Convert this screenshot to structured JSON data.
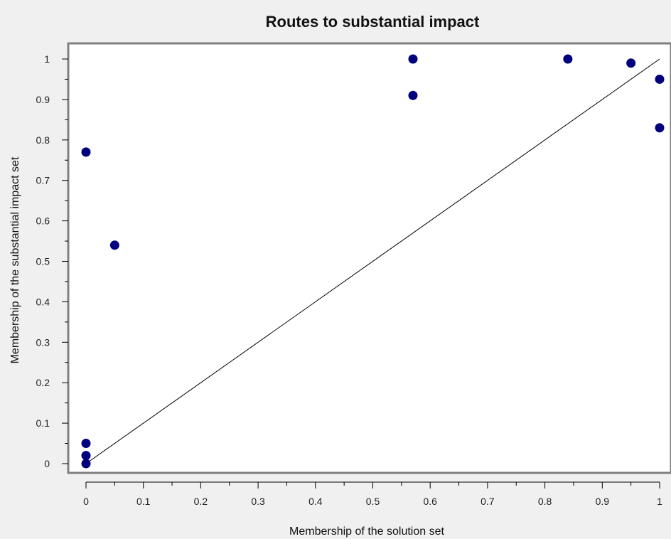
{
  "chart_data": {
    "type": "scatter",
    "title": "Routes to substantial impact",
    "xlabel": "Membership of the solution set",
    "ylabel": "Membership of the substantial impact set",
    "xlim": [
      0,
      1
    ],
    "ylim": [
      0,
      1
    ],
    "x_ticks": [
      "0",
      "0.1",
      "0.2",
      "0.3",
      "0.4",
      "0.5",
      "0.6",
      "0.7",
      "0.8",
      "0.9",
      "1"
    ],
    "y_ticks": [
      "0",
      "0.1",
      "0.2",
      "0.3",
      "0.4",
      "0.5",
      "0.6",
      "0.7",
      "0.8",
      "0.9",
      "1"
    ],
    "grid": false,
    "legend": "none",
    "points": [
      {
        "x": 0,
        "y": 0
      },
      {
        "x": 0,
        "y": 0.02
      },
      {
        "x": 0,
        "y": 0.05
      },
      {
        "x": 0,
        "y": 0.77
      },
      {
        "x": 0.05,
        "y": 0.54
      },
      {
        "x": 0.57,
        "y": 1.0
      },
      {
        "x": 0.57,
        "y": 0.91
      },
      {
        "x": 0.84,
        "y": 1.0
      },
      {
        "x": 0.95,
        "y": 0.99
      },
      {
        "x": 1.0,
        "y": 0.95
      },
      {
        "x": 1.0,
        "y": 0.83
      }
    ],
    "reference_line": {
      "from": [
        0,
        0
      ],
      "to": [
        1,
        1
      ]
    },
    "colors": {
      "point": "#00007f",
      "line": "#000000",
      "plot_background": "#ffffff",
      "page_background": "#f0f0f0",
      "frame": "#808080"
    }
  }
}
